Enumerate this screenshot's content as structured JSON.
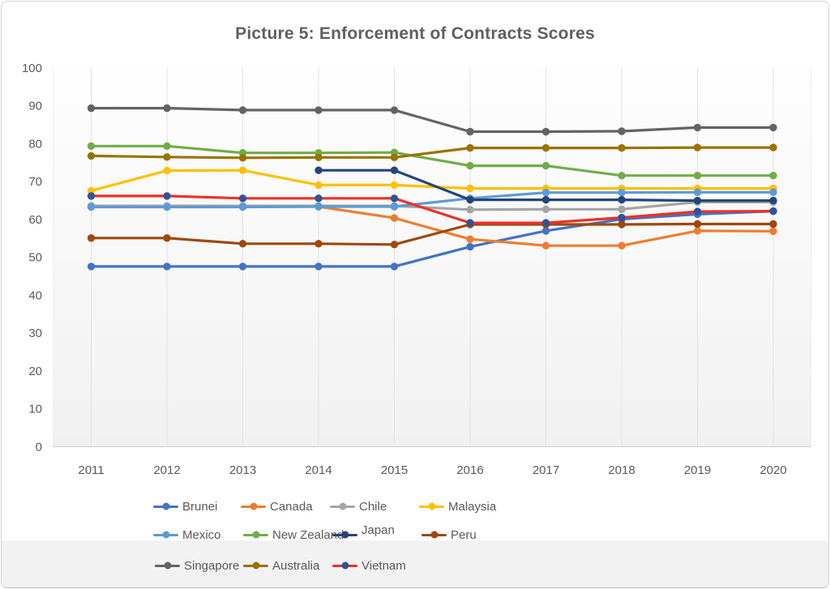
{
  "title": "Picture 5: Enforcement of Contracts Scores",
  "chart_data": {
    "type": "line",
    "title": "Picture 5: Enforcement of Contracts Scores",
    "x": [
      2011,
      2012,
      2013,
      2014,
      2015,
      2016,
      2017,
      2018,
      2019,
      2020
    ],
    "xlabel": "",
    "ylabel": "",
    "ylim": [
      0,
      100
    ],
    "ytick_step": 10,
    "y_ticks": [
      0,
      10,
      20,
      30,
      40,
      50,
      60,
      70,
      80,
      90,
      100
    ],
    "grid": "vertical-only",
    "legend_position": "bottom",
    "series": [
      {
        "name": "Brunei",
        "line_color": "#4472C4",
        "marker_color": "#4472C4",
        "values": [
          47.6,
          47.6,
          47.6,
          47.6,
          47.6,
          52.8,
          57.0,
          60.1,
          61.4,
          62.2
        ]
      },
      {
        "name": "Canada",
        "line_color": "#ED7D31",
        "marker_color": "#ED7D31",
        "values": [
          63.4,
          63.4,
          63.4,
          63.4,
          60.4,
          54.8,
          53.1,
          53.1,
          57.0,
          56.9
        ]
      },
      {
        "name": "Chile",
        "line_color": "#A5A5A5",
        "marker_color": "#A5A5A5",
        "values": [
          63.6,
          63.6,
          63.6,
          63.6,
          63.6,
          62.6,
          62.7,
          62.7,
          64.6,
          64.6
        ]
      },
      {
        "name": "Malaysia",
        "line_color": "#FFC000",
        "marker_color": "#FFC000",
        "values": [
          67.6,
          72.9,
          73.0,
          69.1,
          69.1,
          68.2,
          68.2,
          68.2,
          68.2,
          68.2
        ]
      },
      {
        "name": "Mexico",
        "line_color": "#5B9BD5",
        "marker_color": "#5B9BD5",
        "values": [
          63.3,
          63.3,
          63.3,
          63.4,
          63.4,
          65.6,
          67.1,
          67.1,
          67.2,
          67.2
        ]
      },
      {
        "name": "New Zealand",
        "line_color": "#70AD47",
        "marker_color": "#70AD47",
        "values": [
          79.4,
          79.4,
          77.6,
          77.6,
          77.7,
          74.2,
          74.2,
          71.6,
          71.6,
          71.6
        ]
      },
      {
        "name": "Japan",
        "line_color": "#264478",
        "marker_color": "#264478",
        "values": [
          null,
          null,
          null,
          73.0,
          73.0,
          65.2,
          65.2,
          65.2,
          65.0,
          65.0
        ]
      },
      {
        "name": "Peru",
        "line_color": "#9E480E",
        "marker_color": "#9E480E",
        "values": [
          55.1,
          55.1,
          53.6,
          53.6,
          53.4,
          58.7,
          58.7,
          58.7,
          58.8,
          58.8
        ]
      },
      {
        "name": "Singapore",
        "line_color": "#636363",
        "marker_color": "#636363",
        "values": [
          89.4,
          89.4,
          88.9,
          88.9,
          88.9,
          83.2,
          83.2,
          83.3,
          84.3,
          84.3
        ]
      },
      {
        "name": "Australia",
        "line_color": "#997300",
        "marker_color": "#997300",
        "values": [
          76.8,
          76.5,
          76.3,
          76.4,
          76.4,
          78.9,
          78.9,
          78.9,
          79.0,
          79.0
        ]
      },
      {
        "name": "Vietnam",
        "line_color": "#EE3124",
        "marker_color": "#2F5496",
        "values": [
          66.2,
          66.2,
          65.6,
          65.6,
          65.6,
          59.1,
          59.1,
          60.5,
          62.1,
          62.2
        ]
      }
    ],
    "legend_rows": [
      [
        "Brunei",
        "Canada",
        "Chile",
        "Malaysia"
      ],
      [
        "Mexico",
        "New Zealand",
        "Japan",
        "Peru"
      ],
      [
        "Singapore",
        "Australia",
        "Vietnam"
      ]
    ]
  },
  "style_colors": {
    "axis_text": "#595959",
    "gridline": "#e2e2e2",
    "plot_bg_top": "#fefefe",
    "plot_bg_bottom": "#f1f1f2",
    "bottom_band": "#f2f2f3",
    "axis_line": "#cfcfcf"
  }
}
